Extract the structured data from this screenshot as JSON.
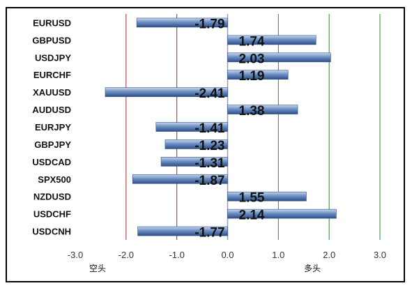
{
  "chart_data": {
    "type": "bar",
    "orientation": "horizontal",
    "categories": [
      "EURUSD",
      "GBPUSD",
      "USDJPY",
      "EURCHF",
      "XAUUSD",
      "AUDUSD",
      "EURJPY",
      "GBPJPY",
      "USDCAD",
      "SPX500",
      "NZDUSD",
      "USDCHF",
      "USDCNH"
    ],
    "values": [
      -1.79,
      1.74,
      2.03,
      1.19,
      -2.41,
      1.38,
      -1.41,
      -1.23,
      -1.31,
      -1.87,
      1.55,
      2.14,
      -1.77
    ],
    "value_labels": [
      "-1.79",
      "1.74",
      "2.03",
      "1.19",
      "-2.41",
      "1.38",
      "-1.41",
      "-1.23",
      "-1.31",
      "-1.87",
      "1.55",
      "2.14",
      "-1.77"
    ],
    "xlim": [
      -3.0,
      3.0
    ],
    "xticks": [
      -3,
      -2,
      -1,
      0,
      1,
      2,
      3
    ],
    "xtick_labels": [
      "-3.0",
      "-2.0",
      "-1.0",
      "0.0",
      "1.0",
      "2.0",
      "3.0"
    ],
    "title": "",
    "xlabel": "",
    "ylabel": "",
    "grid": true,
    "short_zone_label": "空头",
    "long_zone_label": "多头",
    "colors": {
      "bar_dark": "#2e4f86",
      "bar_mid": "#6d8fc3",
      "bar_light": "#c7d6ee",
      "negative_gridline": "#a52a2a",
      "positive_gridline": "#2e8b2e",
      "zero_line": "#9aa0a8"
    }
  }
}
